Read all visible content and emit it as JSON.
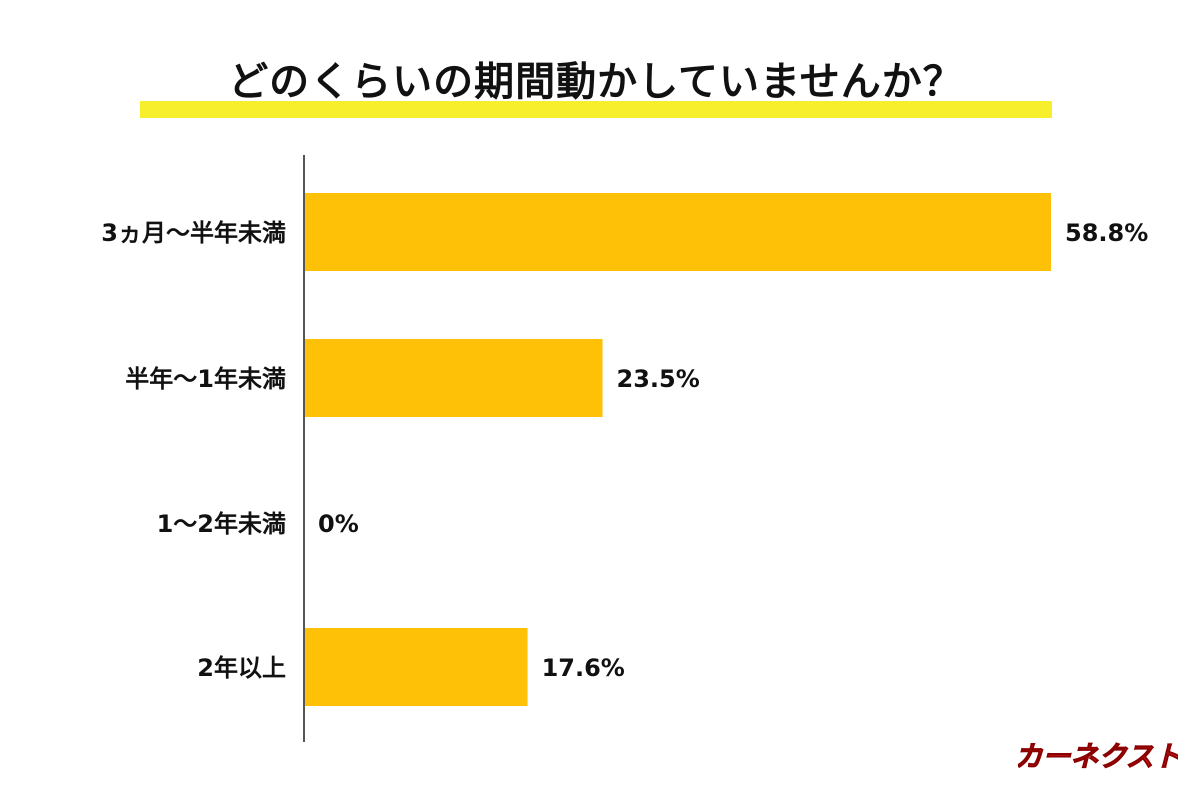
{
  "chart_data": {
    "type": "bar",
    "orientation": "horizontal",
    "title": "どのくらいの期間動かしていませんか？",
    "categories": [
      "3ヵ月〜半年未満",
      "半年〜1年未満",
      "1〜2年未満",
      "2年以上"
    ],
    "values": [
      58.8,
      23.5,
      0,
      17.6
    ],
    "value_labels": [
      "58.8%",
      "23.5%",
      "0%",
      "17.6%"
    ],
    "unit": "%",
    "xlabel": "",
    "ylabel": "",
    "grid": false,
    "legend": "none"
  },
  "colors": {
    "bar": "#ffc107",
    "title_highlight": "#f7ee2c",
    "text": "#111111",
    "axis": "#555555",
    "logo": "#e02020"
  },
  "brand": {
    "logo_text": "カーネクスト"
  }
}
